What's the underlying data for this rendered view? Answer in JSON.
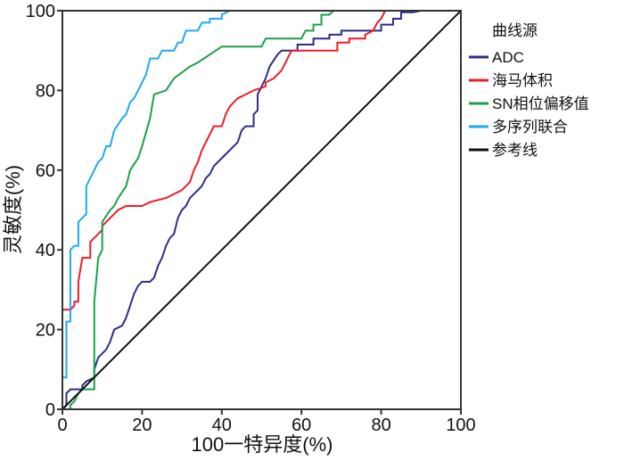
{
  "chart_data": {
    "type": "line",
    "title": "",
    "xlabel": "100一特异度(%)",
    "ylabel": "灵敏度(%)",
    "xlim": [
      0,
      100
    ],
    "ylim": [
      0,
      100
    ],
    "xticks": [
      "0",
      "20",
      "40",
      "60",
      "80",
      "100"
    ],
    "yticks": [
      "0",
      "20",
      "40",
      "60",
      "80",
      "100"
    ],
    "grid": false,
    "legend": {
      "title": "曲线源",
      "placement": "right"
    },
    "series": [
      {
        "name": "ADC",
        "color": "#2b2e8c",
        "points": [
          [
            0,
            0
          ],
          [
            1,
            1
          ],
          [
            1,
            4
          ],
          [
            2,
            5
          ],
          [
            5,
            5
          ],
          [
            5,
            6
          ],
          [
            6,
            7
          ],
          [
            8,
            8
          ],
          [
            8,
            10
          ],
          [
            9,
            13
          ],
          [
            10,
            14
          ],
          [
            11,
            15
          ],
          [
            12,
            17
          ],
          [
            13,
            20
          ],
          [
            15,
            21
          ],
          [
            16,
            23
          ],
          [
            17,
            26
          ],
          [
            18,
            29
          ],
          [
            19,
            31
          ],
          [
            20,
            32
          ],
          [
            22,
            32
          ],
          [
            23,
            33
          ],
          [
            24,
            36
          ],
          [
            25,
            38
          ],
          [
            26,
            41
          ],
          [
            27,
            43
          ],
          [
            28,
            44
          ],
          [
            29,
            48
          ],
          [
            30,
            50
          ],
          [
            31,
            51
          ],
          [
            32,
            53
          ],
          [
            34,
            55
          ],
          [
            35,
            56
          ],
          [
            36,
            58
          ],
          [
            37,
            59
          ],
          [
            38,
            61
          ],
          [
            40,
            63
          ],
          [
            42,
            65
          ],
          [
            44,
            67
          ],
          [
            45,
            70
          ],
          [
            46,
            71
          ],
          [
            48,
            71
          ],
          [
            48,
            74
          ],
          [
            49,
            75
          ],
          [
            49,
            79
          ],
          [
            50,
            81
          ],
          [
            51,
            83
          ],
          [
            52,
            86
          ],
          [
            54,
            89
          ],
          [
            55,
            90
          ],
          [
            59,
            90
          ],
          [
            59,
            91.5
          ],
          [
            63,
            91.5
          ],
          [
            63,
            93
          ],
          [
            67,
            93
          ],
          [
            67,
            94
          ],
          [
            70,
            94
          ],
          [
            70,
            95
          ],
          [
            80,
            95
          ],
          [
            80,
            96.5
          ],
          [
            83,
            96.5
          ],
          [
            83,
            98
          ],
          [
            85,
            98
          ],
          [
            85,
            99.6
          ],
          [
            88,
            99.6
          ],
          [
            90,
            100
          ],
          [
            100,
            100
          ]
        ]
      },
      {
        "name": "海马体积",
        "color": "#ee1c25",
        "points": [
          [
            0,
            25
          ],
          [
            2,
            25
          ],
          [
            3,
            26
          ],
          [
            3,
            27
          ],
          [
            4,
            27
          ],
          [
            4,
            32
          ],
          [
            5,
            38
          ],
          [
            7,
            38
          ],
          [
            7,
            42
          ],
          [
            8,
            43
          ],
          [
            9,
            44
          ],
          [
            10,
            45
          ],
          [
            10,
            46
          ],
          [
            11,
            47
          ],
          [
            12,
            48
          ],
          [
            13,
            49
          ],
          [
            14,
            50
          ],
          [
            16,
            51
          ],
          [
            20,
            51
          ],
          [
            22,
            52
          ],
          [
            26,
            53
          ],
          [
            28,
            54
          ],
          [
            30,
            55
          ],
          [
            32,
            57
          ],
          [
            33,
            60
          ],
          [
            34,
            62
          ],
          [
            35,
            65
          ],
          [
            36,
            67
          ],
          [
            37,
            69
          ],
          [
            38,
            71
          ],
          [
            40,
            71
          ],
          [
            41,
            74
          ],
          [
            42,
            76
          ],
          [
            44,
            78
          ],
          [
            46,
            79
          ],
          [
            48,
            80
          ],
          [
            51,
            81
          ],
          [
            51,
            82
          ],
          [
            53,
            83
          ],
          [
            55,
            85
          ],
          [
            56,
            87
          ],
          [
            57.5,
            90
          ],
          [
            69,
            90
          ],
          [
            69,
            92
          ],
          [
            72,
            92
          ],
          [
            72,
            93
          ],
          [
            76,
            93
          ],
          [
            76,
            94
          ],
          [
            78,
            95
          ],
          [
            79,
            97
          ],
          [
            80,
            98
          ],
          [
            81,
            100
          ],
          [
            100,
            100
          ]
        ]
      },
      {
        "name": "SN相位偏移值",
        "color": "#1aa14a",
        "points": [
          [
            0,
            0
          ],
          [
            2,
            0
          ],
          [
            2,
            1
          ],
          [
            3,
            2
          ],
          [
            4,
            4
          ],
          [
            5,
            5
          ],
          [
            8,
            5
          ],
          [
            8,
            27
          ],
          [
            9,
            38
          ],
          [
            10,
            40
          ],
          [
            10,
            47
          ],
          [
            12,
            50
          ],
          [
            13,
            51
          ],
          [
            14,
            53
          ],
          [
            16,
            56
          ],
          [
            17,
            60
          ],
          [
            19,
            63
          ],
          [
            20,
            66
          ],
          [
            22,
            73
          ],
          [
            23,
            79
          ],
          [
            26,
            80
          ],
          [
            28,
            83
          ],
          [
            32,
            86
          ],
          [
            34,
            87
          ],
          [
            37,
            89
          ],
          [
            40,
            91
          ],
          [
            50,
            91
          ],
          [
            51,
            93
          ],
          [
            60,
            93
          ],
          [
            61,
            95
          ],
          [
            63,
            95
          ],
          [
            63,
            96.5
          ],
          [
            65,
            96.5
          ],
          [
            65,
            99
          ],
          [
            67,
            99
          ],
          [
            68,
            100
          ],
          [
            100,
            100
          ]
        ]
      },
      {
        "name": "多序列联合",
        "color": "#1eaaf1",
        "points": [
          [
            0,
            0
          ],
          [
            0,
            8
          ],
          [
            1,
            8
          ],
          [
            1,
            22
          ],
          [
            2,
            22
          ],
          [
            2,
            40
          ],
          [
            3,
            41
          ],
          [
            4,
            41
          ],
          [
            4,
            47
          ],
          [
            5,
            48
          ],
          [
            6,
            49
          ],
          [
            6,
            56
          ],
          [
            7,
            58
          ],
          [
            8,
            60
          ],
          [
            9,
            62
          ],
          [
            10,
            63
          ],
          [
            11,
            66
          ],
          [
            12,
            66
          ],
          [
            13,
            70
          ],
          [
            15,
            73
          ],
          [
            16,
            74
          ],
          [
            17,
            77
          ],
          [
            18,
            78
          ],
          [
            19,
            80
          ],
          [
            20,
            82
          ],
          [
            21,
            84
          ],
          [
            22,
            88
          ],
          [
            24,
            88
          ],
          [
            25,
            90
          ],
          [
            28,
            90
          ],
          [
            29,
            92
          ],
          [
            30,
            92
          ],
          [
            31,
            95
          ],
          [
            34,
            95
          ],
          [
            35,
            97
          ],
          [
            37,
            97
          ],
          [
            37,
            98
          ],
          [
            40,
            98
          ],
          [
            40,
            99
          ],
          [
            42,
            100
          ],
          [
            100,
            100
          ]
        ]
      },
      {
        "name": "参考线",
        "color": "#111111",
        "points": [
          [
            0,
            0
          ],
          [
            100,
            100
          ]
        ]
      }
    ]
  }
}
